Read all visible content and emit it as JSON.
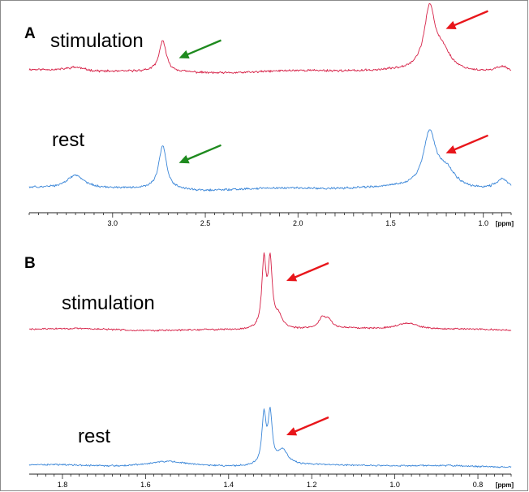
{
  "colors": {
    "stimulation": "#d62046",
    "rest": "#3a86d8",
    "arrow_red": "#e8161b",
    "arrow_green": "#1e8a1e",
    "axis": "#222222"
  },
  "chart_data": [
    {
      "type": "line",
      "panel": "A",
      "xlabel": "[ppm]",
      "xlim": [
        3.45,
        0.85
      ],
      "x_reversed": true,
      "xticks": [
        "3.0",
        "2.5",
        "2.0",
        "1.5",
        "1.0"
      ],
      "xtick_values": [
        3.0,
        2.5,
        2.0,
        1.5,
        1.0
      ],
      "series": [
        {
          "name": "stimulation",
          "baseline": 1.0,
          "peaks": [
            {
              "center": 2.73,
              "height": 3.2,
              "width": 0.022
            },
            {
              "center": 1.29,
              "height": 6.2,
              "width": 0.035
            },
            {
              "center": 1.22,
              "height": 1.8,
              "width": 0.05
            },
            {
              "center": 3.2,
              "height": 0.4,
              "width": 0.06
            },
            {
              "center": 0.9,
              "height": 0.6,
              "width": 0.04
            }
          ],
          "arrows": [
            {
              "type": "green",
              "x": 2.73
            },
            {
              "type": "red",
              "x": 1.29
            }
          ]
        },
        {
          "name": "rest",
          "baseline": 0.6,
          "peaks": [
            {
              "center": 2.73,
              "height": 4.5,
              "width": 0.025
            },
            {
              "center": 1.29,
              "height": 5.5,
              "width": 0.04
            },
            {
              "center": 1.2,
              "height": 1.8,
              "width": 0.06
            },
            {
              "center": 3.2,
              "height": 1.4,
              "width": 0.06
            },
            {
              "center": 0.9,
              "height": 1.0,
              "width": 0.04
            }
          ],
          "arrows": [
            {
              "type": "green",
              "x": 2.73
            },
            {
              "type": "red",
              "x": 1.29
            }
          ]
        }
      ]
    },
    {
      "type": "line",
      "panel": "B",
      "xlabel": "[ppm]",
      "xlim": [
        1.88,
        0.72
      ],
      "x_reversed": true,
      "xticks": [
        "1.8",
        "1.6",
        "1.4",
        "1.2",
        "1.0",
        "0.8"
      ],
      "xtick_values": [
        1.8,
        1.6,
        1.4,
        1.2,
        1.0,
        0.8
      ],
      "series": [
        {
          "name": "stimulation",
          "baseline": 0.4,
          "peaks": [
            {
              "center": 1.315,
              "height": 8.2,
              "width": 0.006
            },
            {
              "center": 1.3,
              "height": 8.0,
              "width": 0.006
            },
            {
              "center": 1.28,
              "height": 1.5,
              "width": 0.012
            },
            {
              "center": 1.175,
              "height": 1.2,
              "width": 0.01
            },
            {
              "center": 1.16,
              "height": 1.0,
              "width": 0.01
            },
            {
              "center": 0.97,
              "height": 0.8,
              "width": 0.03
            }
          ],
          "arrows": [
            {
              "type": "red",
              "x": 1.3
            }
          ]
        },
        {
          "name": "rest",
          "baseline": 0.6,
          "peaks": [
            {
              "center": 1.315,
              "height": 6.0,
              "width": 0.006
            },
            {
              "center": 1.3,
              "height": 6.0,
              "width": 0.006
            },
            {
              "center": 1.27,
              "height": 1.8,
              "width": 0.015
            },
            {
              "center": 1.55,
              "height": 0.6,
              "width": 0.06
            }
          ],
          "arrows": [
            {
              "type": "red",
              "x": 1.3
            }
          ]
        }
      ]
    }
  ],
  "labels": {
    "panelA": "A",
    "panelB": "B",
    "a_stim": "stimulation",
    "a_rest": "rest",
    "b_stim": "stimulation",
    "b_rest": "rest"
  }
}
